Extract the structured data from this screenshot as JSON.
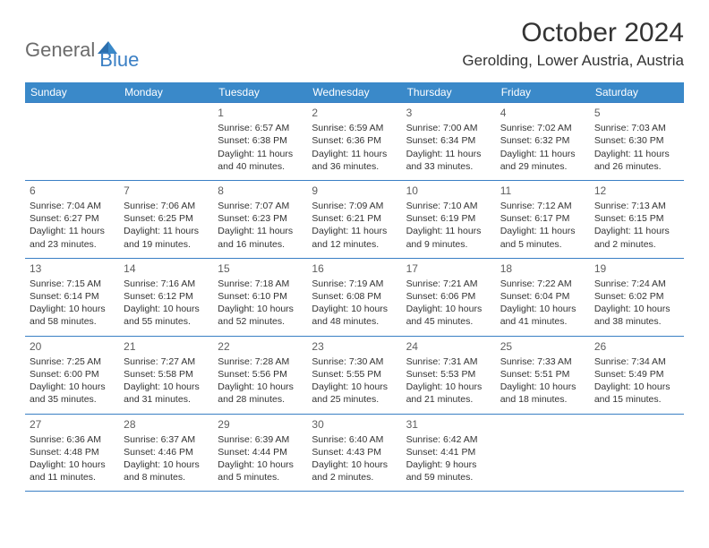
{
  "logo": {
    "general": "General",
    "blue": "Blue"
  },
  "title": "October 2024",
  "location": "Gerolding, Lower Austria, Austria",
  "colors": {
    "header_bg": "#3a89c9",
    "header_text": "#ffffff",
    "border": "#3a7fc4",
    "body_text": "#333333",
    "logo_gray": "#6b6b6b",
    "logo_blue": "#3a7fc4",
    "background": "#ffffff"
  },
  "typography": {
    "title_fontsize": 30,
    "location_fontsize": 17,
    "weekday_fontsize": 12,
    "daynum_fontsize": 12,
    "body_fontsize": 10.5
  },
  "weekdays": [
    "Sunday",
    "Monday",
    "Tuesday",
    "Wednesday",
    "Thursday",
    "Friday",
    "Saturday"
  ],
  "weeks": [
    [
      {},
      {},
      {
        "n": "1",
        "sr": "Sunrise: 6:57 AM",
        "ss": "Sunset: 6:38 PM",
        "dl": "Daylight: 11 hours and 40 minutes."
      },
      {
        "n": "2",
        "sr": "Sunrise: 6:59 AM",
        "ss": "Sunset: 6:36 PM",
        "dl": "Daylight: 11 hours and 36 minutes."
      },
      {
        "n": "3",
        "sr": "Sunrise: 7:00 AM",
        "ss": "Sunset: 6:34 PM",
        "dl": "Daylight: 11 hours and 33 minutes."
      },
      {
        "n": "4",
        "sr": "Sunrise: 7:02 AM",
        "ss": "Sunset: 6:32 PM",
        "dl": "Daylight: 11 hours and 29 minutes."
      },
      {
        "n": "5",
        "sr": "Sunrise: 7:03 AM",
        "ss": "Sunset: 6:30 PM",
        "dl": "Daylight: 11 hours and 26 minutes."
      }
    ],
    [
      {
        "n": "6",
        "sr": "Sunrise: 7:04 AM",
        "ss": "Sunset: 6:27 PM",
        "dl": "Daylight: 11 hours and 23 minutes."
      },
      {
        "n": "7",
        "sr": "Sunrise: 7:06 AM",
        "ss": "Sunset: 6:25 PM",
        "dl": "Daylight: 11 hours and 19 minutes."
      },
      {
        "n": "8",
        "sr": "Sunrise: 7:07 AM",
        "ss": "Sunset: 6:23 PM",
        "dl": "Daylight: 11 hours and 16 minutes."
      },
      {
        "n": "9",
        "sr": "Sunrise: 7:09 AM",
        "ss": "Sunset: 6:21 PM",
        "dl": "Daylight: 11 hours and 12 minutes."
      },
      {
        "n": "10",
        "sr": "Sunrise: 7:10 AM",
        "ss": "Sunset: 6:19 PM",
        "dl": "Daylight: 11 hours and 9 minutes."
      },
      {
        "n": "11",
        "sr": "Sunrise: 7:12 AM",
        "ss": "Sunset: 6:17 PM",
        "dl": "Daylight: 11 hours and 5 minutes."
      },
      {
        "n": "12",
        "sr": "Sunrise: 7:13 AM",
        "ss": "Sunset: 6:15 PM",
        "dl": "Daylight: 11 hours and 2 minutes."
      }
    ],
    [
      {
        "n": "13",
        "sr": "Sunrise: 7:15 AM",
        "ss": "Sunset: 6:14 PM",
        "dl": "Daylight: 10 hours and 58 minutes."
      },
      {
        "n": "14",
        "sr": "Sunrise: 7:16 AM",
        "ss": "Sunset: 6:12 PM",
        "dl": "Daylight: 10 hours and 55 minutes."
      },
      {
        "n": "15",
        "sr": "Sunrise: 7:18 AM",
        "ss": "Sunset: 6:10 PM",
        "dl": "Daylight: 10 hours and 52 minutes."
      },
      {
        "n": "16",
        "sr": "Sunrise: 7:19 AM",
        "ss": "Sunset: 6:08 PM",
        "dl": "Daylight: 10 hours and 48 minutes."
      },
      {
        "n": "17",
        "sr": "Sunrise: 7:21 AM",
        "ss": "Sunset: 6:06 PM",
        "dl": "Daylight: 10 hours and 45 minutes."
      },
      {
        "n": "18",
        "sr": "Sunrise: 7:22 AM",
        "ss": "Sunset: 6:04 PM",
        "dl": "Daylight: 10 hours and 41 minutes."
      },
      {
        "n": "19",
        "sr": "Sunrise: 7:24 AM",
        "ss": "Sunset: 6:02 PM",
        "dl": "Daylight: 10 hours and 38 minutes."
      }
    ],
    [
      {
        "n": "20",
        "sr": "Sunrise: 7:25 AM",
        "ss": "Sunset: 6:00 PM",
        "dl": "Daylight: 10 hours and 35 minutes."
      },
      {
        "n": "21",
        "sr": "Sunrise: 7:27 AM",
        "ss": "Sunset: 5:58 PM",
        "dl": "Daylight: 10 hours and 31 minutes."
      },
      {
        "n": "22",
        "sr": "Sunrise: 7:28 AM",
        "ss": "Sunset: 5:56 PM",
        "dl": "Daylight: 10 hours and 28 minutes."
      },
      {
        "n": "23",
        "sr": "Sunrise: 7:30 AM",
        "ss": "Sunset: 5:55 PM",
        "dl": "Daylight: 10 hours and 25 minutes."
      },
      {
        "n": "24",
        "sr": "Sunrise: 7:31 AM",
        "ss": "Sunset: 5:53 PM",
        "dl": "Daylight: 10 hours and 21 minutes."
      },
      {
        "n": "25",
        "sr": "Sunrise: 7:33 AM",
        "ss": "Sunset: 5:51 PM",
        "dl": "Daylight: 10 hours and 18 minutes."
      },
      {
        "n": "26",
        "sr": "Sunrise: 7:34 AM",
        "ss": "Sunset: 5:49 PM",
        "dl": "Daylight: 10 hours and 15 minutes."
      }
    ],
    [
      {
        "n": "27",
        "sr": "Sunrise: 6:36 AM",
        "ss": "Sunset: 4:48 PM",
        "dl": "Daylight: 10 hours and 11 minutes."
      },
      {
        "n": "28",
        "sr": "Sunrise: 6:37 AM",
        "ss": "Sunset: 4:46 PM",
        "dl": "Daylight: 10 hours and 8 minutes."
      },
      {
        "n": "29",
        "sr": "Sunrise: 6:39 AM",
        "ss": "Sunset: 4:44 PM",
        "dl": "Daylight: 10 hours and 5 minutes."
      },
      {
        "n": "30",
        "sr": "Sunrise: 6:40 AM",
        "ss": "Sunset: 4:43 PM",
        "dl": "Daylight: 10 hours and 2 minutes."
      },
      {
        "n": "31",
        "sr": "Sunrise: 6:42 AM",
        "ss": "Sunset: 4:41 PM",
        "dl": "Daylight: 9 hours and 59 minutes."
      },
      {},
      {}
    ]
  ]
}
